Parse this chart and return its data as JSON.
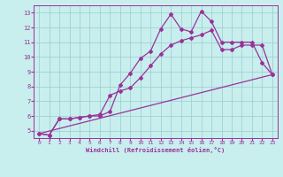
{
  "xlabel": "Windchill (Refroidissement éolien,°C)",
  "xlim": [
    -0.5,
    23.5
  ],
  "ylim": [
    4.5,
    13.5
  ],
  "yticks": [
    5,
    6,
    7,
    8,
    9,
    10,
    11,
    12,
    13
  ],
  "xticks": [
    0,
    1,
    2,
    3,
    4,
    5,
    6,
    7,
    8,
    9,
    10,
    11,
    12,
    13,
    14,
    15,
    16,
    17,
    18,
    19,
    20,
    21,
    22,
    23
  ],
  "bg_color": "#c8eeee",
  "line_color": "#993399",
  "grid_color": "#99cccc",
  "line1_x": [
    0,
    1,
    2,
    3,
    4,
    5,
    6,
    7,
    8,
    9,
    10,
    11,
    12,
    13,
    14,
    15,
    16,
    17,
    18,
    19,
    20,
    21,
    22,
    23
  ],
  "line1_y": [
    4.8,
    4.7,
    5.8,
    5.8,
    5.9,
    6.0,
    6.0,
    6.3,
    8.1,
    8.9,
    9.9,
    10.4,
    11.9,
    12.9,
    11.9,
    11.7,
    13.1,
    12.4,
    11.0,
    11.0,
    11.0,
    11.0,
    9.6,
    8.8
  ],
  "line2_x": [
    0,
    1,
    2,
    3,
    4,
    5,
    6,
    7,
    8,
    9,
    10,
    11,
    12,
    13,
    14,
    15,
    16,
    17,
    18,
    19,
    20,
    21,
    22,
    23
  ],
  "line2_y": [
    4.8,
    4.7,
    5.8,
    5.8,
    5.9,
    6.0,
    6.1,
    7.4,
    7.7,
    7.9,
    8.6,
    9.4,
    10.2,
    10.8,
    11.1,
    11.3,
    11.5,
    11.8,
    10.5,
    10.5,
    10.8,
    10.8,
    10.8,
    8.8
  ],
  "line3_x": [
    0,
    23
  ],
  "line3_y": [
    4.8,
    8.8
  ],
  "marker": "D",
  "markersize": 2,
  "linewidth": 0.9
}
